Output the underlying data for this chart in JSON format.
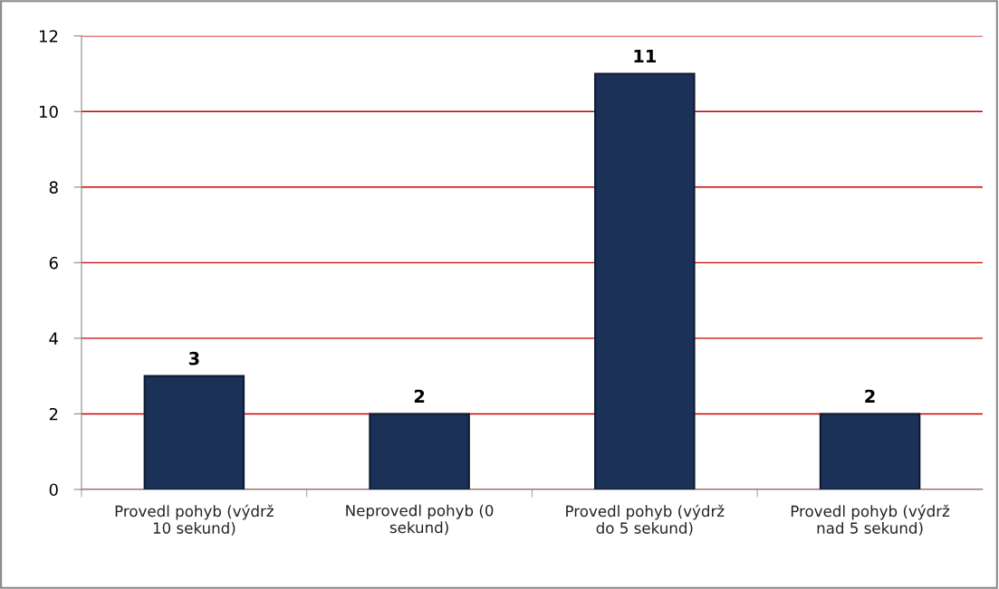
{
  "chart_data": {
    "type": "bar",
    "categories": [
      "Provedl pohyb (výdrž\n10 sekund)",
      "Neprovedl pohyb (0\nsekund)",
      "Provedl pohyb (výdrž\ndo 5 sekund)",
      "Provedl pohyb (výdrž\nnad 5 sekund)"
    ],
    "values": [
      3,
      2,
      11,
      2
    ],
    "color": "#1c3157",
    "ylim": [
      0,
      12
    ],
    "yticks": [
      0,
      2,
      4,
      6,
      8,
      10,
      12
    ],
    "grid": "y",
    "data_labels": true,
    "legend": false
  }
}
